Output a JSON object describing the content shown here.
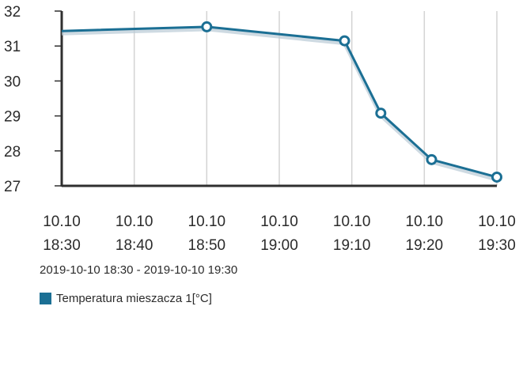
{
  "chart_data": {
    "type": "line",
    "x": [
      "2019-10-10 18:30",
      "2019-10-10 18:50",
      "2019-10-10 19:09",
      "2019-10-10 19:14",
      "2019-10-10 19:21",
      "2019-10-10 19:30"
    ],
    "series": [
      {
        "name": "Temperatura mieszacza 1[°C]",
        "values": [
          31.43,
          31.55,
          31.15,
          29.08,
          27.75,
          27.25
        ],
        "markers": [
          false,
          true,
          true,
          true,
          true,
          true
        ],
        "color": "#1b6f94"
      }
    ],
    "xticks": [
      {
        "top": "10.10",
        "bottom": "18:30"
      },
      {
        "top": "10.10",
        "bottom": "18:40"
      },
      {
        "top": "10.10",
        "bottom": "18:50"
      },
      {
        "top": "10.10",
        "bottom": "19:00"
      },
      {
        "top": "10.10",
        "bottom": "19:10"
      },
      {
        "top": "10.10",
        "bottom": "19:20"
      },
      {
        "top": "10.10",
        "bottom": "19:30"
      }
    ],
    "yticks": [
      "27",
      "28",
      "29",
      "30",
      "31",
      "32"
    ],
    "ylim": [
      27,
      32
    ],
    "xlim": [
      "2019-10-10 18:30",
      "2019-10-10 19:30"
    ],
    "grid": "vertical",
    "legend_position": "bottom-left",
    "range_label": "2019-10-10 18:30 - 2019-10-10 19:30",
    "title": "",
    "xlabel": "",
    "ylabel": ""
  }
}
